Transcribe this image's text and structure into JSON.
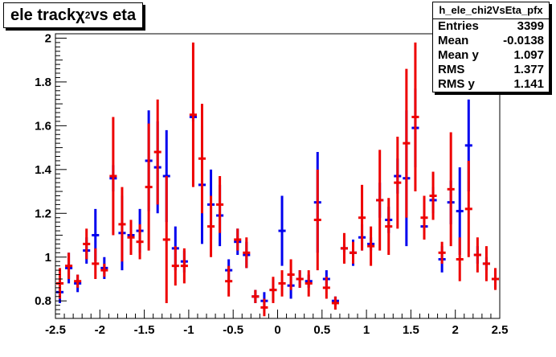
{
  "title": {
    "pre": "ele track ",
    "chi": "χ",
    "sup": "2",
    "post": " vs eta"
  },
  "stats": {
    "name": "h_ele_chi2VsEta_pfx",
    "rows": [
      {
        "label": "Entries",
        "value": "3399"
      },
      {
        "label": "Mean",
        "value": "-0.0138"
      },
      {
        "label": "Mean y",
        "value": "1.097"
      },
      {
        "label": "RMS",
        "value": "1.377"
      },
      {
        "label": "RMS y",
        "value": "1.141"
      }
    ]
  },
  "colors": {
    "series_blue": "#0000ee",
    "series_red": "#ee0000",
    "axis": "#000000"
  },
  "chart_data": {
    "type": "scatter",
    "title": "ele track χ2 vs eta",
    "xlim": [
      -2.5,
      2.5
    ],
    "ylim": [
      0.72,
      2.02
    ],
    "x_ticks": [
      "-2.5",
      "-2",
      "-1.5",
      "-1",
      "-0.5",
      "0",
      "0.5",
      "1",
      "1.5",
      "2",
      "2.5"
    ],
    "y_ticks": [
      "0.8",
      "1",
      "1.2",
      "1.4",
      "1.6",
      "1.8",
      "2"
    ],
    "grid": false,
    "bin_width": 0.1,
    "series": [
      {
        "color": "blue",
        "x": [
          -2.45,
          -2.35,
          -2.25,
          -2.15,
          -2.05,
          -1.95,
          -1.85,
          -1.75,
          -1.65,
          -1.55,
          -1.45,
          -1.35,
          -1.25,
          -1.15,
          -1.05,
          -0.95,
          -0.85,
          -0.75,
          -0.65,
          -0.55,
          -0.45,
          -0.35,
          -0.25,
          -0.15,
          -0.05,
          0.05,
          0.15,
          0.25,
          0.35,
          0.45,
          0.55,
          0.65,
          0.75,
          0.85,
          0.95,
          1.05,
          1.15,
          1.25,
          1.35,
          1.45,
          1.55,
          1.65,
          1.75,
          1.85,
          1.95,
          2.05,
          2.15,
          2.25,
          2.35,
          2.45
        ],
        "y": [
          0.84,
          0.95,
          0.88,
          1.03,
          1.1,
          0.95,
          1.36,
          1.11,
          1.1,
          1.12,
          1.44,
          1.41,
          1.37,
          1.04,
          0.98,
          1.64,
          1.33,
          1.24,
          1.19,
          0.94,
          1.07,
          1.01,
          0.82,
          0.8,
          0.85,
          1.12,
          0.87,
          0.9,
          0.89,
          1.25,
          0.9,
          0.8,
          1.04,
          1.02,
          1.09,
          1.06,
          1.26,
          1.17,
          1.37,
          1.36,
          1.59,
          1.14,
          1.26,
          0.99,
          1.25,
          1.21,
          1.51,
          1.01,
          0.97,
          0.9
        ],
        "err": [
          0.05,
          0.07,
          0.04,
          0.06,
          0.12,
          0.05,
          0.06,
          0.17,
          0.07,
          0.1,
          0.23,
          0.21,
          0.21,
          0.1,
          0.05,
          0.02,
          0.27,
          0.16,
          0.14,
          0.05,
          0.06,
          0.06,
          0.03,
          0.04,
          0.05,
          0.16,
          0.06,
          0.04,
          0.03,
          0.23,
          0.04,
          0.02,
          0.02,
          0.06,
          0.06,
          0.03,
          0.08,
          0.06,
          0.08,
          0.31,
          0.18,
          0.05,
          0.06,
          0.06,
          0.1,
          0.2,
          0.21,
          0.04,
          0.03,
          0.04
        ]
      },
      {
        "color": "red",
        "x": [
          -2.45,
          -2.35,
          -2.25,
          -2.15,
          -2.05,
          -1.95,
          -1.85,
          -1.75,
          -1.65,
          -1.55,
          -1.45,
          -1.35,
          -1.25,
          -1.15,
          -1.05,
          -0.95,
          -0.85,
          -0.75,
          -0.65,
          -0.55,
          -0.45,
          -0.35,
          -0.25,
          -0.15,
          -0.05,
          0.05,
          0.15,
          0.25,
          0.35,
          0.45,
          0.55,
          0.65,
          0.75,
          0.85,
          0.95,
          1.05,
          1.15,
          1.25,
          1.35,
          1.45,
          1.55,
          1.65,
          1.75,
          1.85,
          1.95,
          2.05,
          2.15,
          2.25,
          2.35,
          2.45
        ],
        "y": [
          0.88,
          0.96,
          0.89,
          1.06,
          0.97,
          0.94,
          1.37,
          1.15,
          1.09,
          1.07,
          1.32,
          1.48,
          1.08,
          0.96,
          0.96,
          1.65,
          1.45,
          1.14,
          1.24,
          0.89,
          1.08,
          1.02,
          0.82,
          0.77,
          0.85,
          0.88,
          0.92,
          0.9,
          0.88,
          1.17,
          0.86,
          0.79,
          1.04,
          1.02,
          1.18,
          1.05,
          1.26,
          1.14,
          1.34,
          1.52,
          1.64,
          1.18,
          1.28,
          1.02,
          1.31,
          0.99,
          1.22,
          1.01,
          0.97,
          0.9
        ],
        "err": [
          0.07,
          0.06,
          0.03,
          0.07,
          0.07,
          0.03,
          0.27,
          0.17,
          0.08,
          0.08,
          0.29,
          0.24,
          0.29,
          0.09,
          0.08,
          0.33,
          0.25,
          0.14,
          0.13,
          0.07,
          0.05,
          0.07,
          0.03,
          0.04,
          0.06,
          0.06,
          0.07,
          0.04,
          0.06,
          0.23,
          0.05,
          0.03,
          0.07,
          0.05,
          0.15,
          0.09,
          0.23,
          0.13,
          0.21,
          0.34,
          0.34,
          0.1,
          0.11,
          0.05,
          0.26,
          0.1,
          0.22,
          0.08,
          0.08,
          0.05
        ]
      }
    ]
  }
}
